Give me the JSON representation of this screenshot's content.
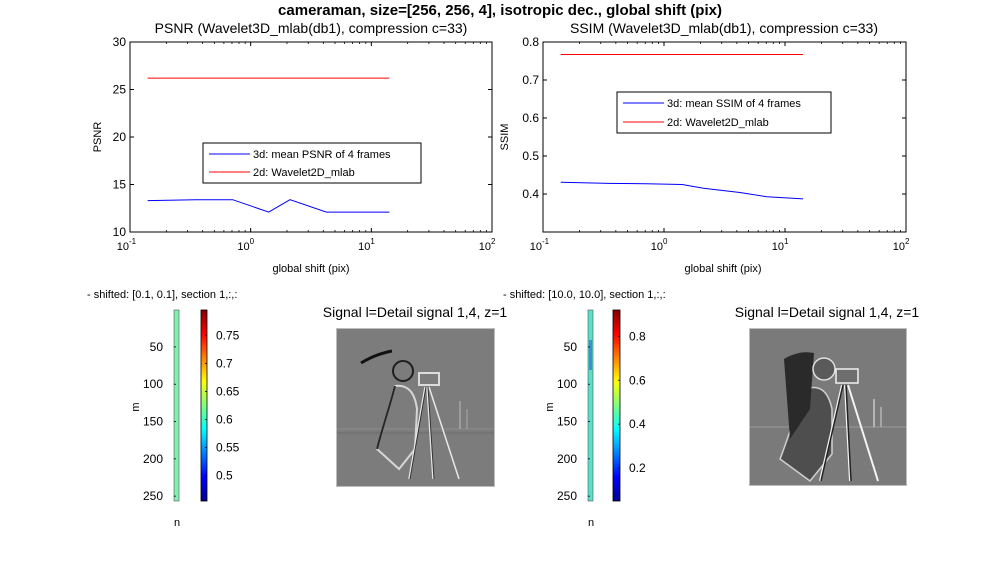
{
  "figure": {
    "suptitle": "cameraman, size=[256, 256, 4], isotropic dec., global shift (pix)"
  },
  "chart_data": [
    {
      "type": "line",
      "title": "PSNR (Wavelet3D_mlab(db1), compression c=33)",
      "xlabel": "global shift (pix)",
      "ylabel": "PSNR",
      "xscale": "log",
      "xlim": [
        0.1,
        100
      ],
      "ylim": [
        10,
        30
      ],
      "xticks": [
        0.1,
        1,
        10,
        100
      ],
      "xtick_labels": [
        {
          "base": "10",
          "exp": "-1"
        },
        {
          "base": "10",
          "exp": "0"
        },
        {
          "base": "10",
          "exp": "1"
        },
        {
          "base": "10",
          "exp": "2"
        }
      ],
      "yticks": [
        10,
        15,
        20,
        25,
        30
      ],
      "ytick_labels": [
        "10",
        "15",
        "20",
        "25",
        "30"
      ],
      "legend_position": "center",
      "series": [
        {
          "name": "3d: mean PSNR of 4 frames",
          "color": "#0000ff",
          "x": [
            0.14,
            0.35,
            0.71,
            1.41,
            2.12,
            4.24,
            7.07,
            14.1
          ],
          "y": [
            13.3,
            13.4,
            13.4,
            12.1,
            13.4,
            12.1,
            12.1,
            12.1
          ]
        },
        {
          "name": "2d: Wavelet2D_mlab",
          "color": "#ff0000",
          "x": [
            0.14,
            14.1
          ],
          "y": [
            26.2,
            26.2
          ]
        }
      ]
    },
    {
      "type": "line",
      "title": "SSIM (Wavelet3D_mlab(db1), compression c=33)",
      "xlabel": "global shift (pix)",
      "ylabel": "SSIM",
      "xscale": "log",
      "xlim": [
        0.1,
        100
      ],
      "ylim": [
        0.3,
        0.8
      ],
      "xticks": [
        0.1,
        1,
        10,
        100
      ],
      "xtick_labels": [
        {
          "base": "10",
          "exp": "-1"
        },
        {
          "base": "10",
          "exp": "0"
        },
        {
          "base": "10",
          "exp": "1"
        },
        {
          "base": "10",
          "exp": "2"
        }
      ],
      "yticks": [
        0.4,
        0.5,
        0.6,
        0.7,
        0.8
      ],
      "ytick_labels": [
        "0.4",
        "0.5",
        "0.6",
        "0.7",
        "0.8"
      ],
      "legend_position": "center-top",
      "series": [
        {
          "name": "3d: mean SSIM of 4 frames",
          "color": "#0000ff",
          "x": [
            0.14,
            0.35,
            0.71,
            1.41,
            2.12,
            4.24,
            7.07,
            14.1
          ],
          "y": [
            0.431,
            0.428,
            0.427,
            0.425,
            0.415,
            0.404,
            0.393,
            0.387
          ]
        },
        {
          "name": "2d: Wavelet2D_mlab",
          "color": "#ff0000",
          "x": [
            0.14,
            14.1
          ],
          "y": [
            0.767,
            0.767
          ]
        }
      ]
    },
    {
      "type": "heatmap",
      "title": "- shifted: [0.1, 0.1], section 1,:,:",
      "xlabel": "n",
      "ylabel": "m",
      "ylim": [
        0.5,
        256.5
      ],
      "yticks": [
        50,
        100,
        150,
        200,
        250
      ],
      "ytick_labels": [
        "50",
        "100",
        "150",
        "200",
        "250"
      ],
      "colorbar": {
        "range": [
          0.455,
          0.795
        ],
        "ticks": [
          0.5,
          0.55,
          0.6,
          0.65,
          0.7,
          0.75
        ],
        "tick_labels": [
          "0.5",
          "0.55",
          "0.6",
          "0.65",
          "0.7",
          "0.75"
        ]
      }
    },
    {
      "type": "heatmap",
      "title": "- shifted: [10.0, 10.0], section 1,:,:",
      "xlabel": "n",
      "ylabel": "m",
      "ylim": [
        0.5,
        256.5
      ],
      "yticks": [
        50,
        100,
        150,
        200,
        250
      ],
      "ytick_labels": [
        "50",
        "100",
        "150",
        "200",
        "250"
      ],
      "colorbar": {
        "range": [
          0.05,
          0.92
        ],
        "ticks": [
          0.2,
          0.4,
          0.6,
          0.8
        ],
        "tick_labels": [
          "0.2",
          "0.4",
          "0.6",
          "0.8"
        ]
      }
    }
  ],
  "images": [
    {
      "title": "Signal l=Detail signal 1,4, z=1",
      "content": "cameraman-detail-signal"
    },
    {
      "title": "Signal l=Detail signal 1,4, z=1",
      "content": "cameraman-detail-signal"
    }
  ]
}
